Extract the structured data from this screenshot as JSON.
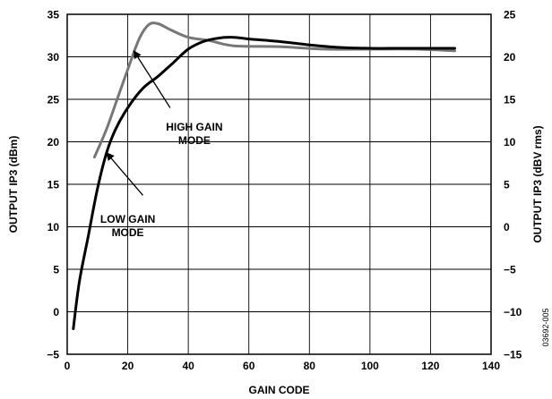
{
  "chart_data": {
    "type": "line",
    "xlabel": "GAIN CODE",
    "ylabel_left": "OUTPUT IP3 (dBm)",
    "ylabel_right": "OUTPUT IP3 (dBV rms)",
    "xlim": [
      0,
      140
    ],
    "ylim_left": [
      -5,
      35
    ],
    "ylim_right": [
      -15,
      25
    ],
    "x_ticks": [
      "0",
      "20",
      "40",
      "60",
      "80",
      "100",
      "120",
      "140"
    ],
    "y_ticks_left": [
      "−5",
      "0",
      "5",
      "10",
      "15",
      "20",
      "25",
      "30",
      "35"
    ],
    "y_ticks_right": [
      "−15",
      "−10",
      "−5",
      "0",
      "5",
      "10",
      "15",
      "20",
      "25"
    ],
    "grid": true,
    "series": [
      {
        "name": "HIGH GAIN MODE",
        "color": "#777777",
        "points": [
          [
            9,
            18.2
          ],
          [
            13,
            21.5
          ],
          [
            17,
            25.5
          ],
          [
            21,
            29.5
          ],
          [
            24,
            32.3
          ],
          [
            27,
            33.8
          ],
          [
            30,
            33.9
          ],
          [
            34,
            33.2
          ],
          [
            40,
            32.3
          ],
          [
            47,
            31.9
          ],
          [
            55,
            31.3
          ],
          [
            70,
            31.2
          ],
          [
            85,
            30.9
          ],
          [
            100,
            30.9
          ],
          [
            115,
            30.9
          ],
          [
            128,
            30.7
          ]
        ]
      },
      {
        "name": "LOW GAIN MODE",
        "color": "#000000",
        "points": [
          [
            2,
            -2
          ],
          [
            4,
            3.5
          ],
          [
            7,
            9
          ],
          [
            10,
            14.5
          ],
          [
            13,
            18.7
          ],
          [
            16,
            21.5
          ],
          [
            20,
            24
          ],
          [
            25,
            26.3
          ],
          [
            30,
            27.7
          ],
          [
            35,
            29.3
          ],
          [
            40,
            30.9
          ],
          [
            45,
            31.8
          ],
          [
            50,
            32.2
          ],
          [
            55,
            32.3
          ],
          [
            60,
            32.1
          ],
          [
            70,
            31.8
          ],
          [
            80,
            31.4
          ],
          [
            90,
            31.1
          ],
          [
            100,
            31
          ],
          [
            110,
            31
          ],
          [
            120,
            31
          ],
          [
            128,
            31
          ]
        ]
      }
    ],
    "annotations": [
      {
        "lines": [
          "HIGH GAIN",
          "MODE"
        ],
        "series": "HIGH GAIN MODE",
        "label_at": [
          42,
          21.3
        ],
        "arrow_from": [
          34,
          24
        ],
        "arrow_to": [
          22,
          30.7
        ]
      },
      {
        "lines": [
          "LOW GAIN",
          "MODE"
        ],
        "series": "LOW GAIN MODE",
        "label_at": [
          20,
          10.5
        ],
        "arrow_from": [
          25,
          13.7
        ],
        "arrow_to": [
          13,
          18.7
        ]
      }
    ],
    "figure_id": "03692-005"
  }
}
